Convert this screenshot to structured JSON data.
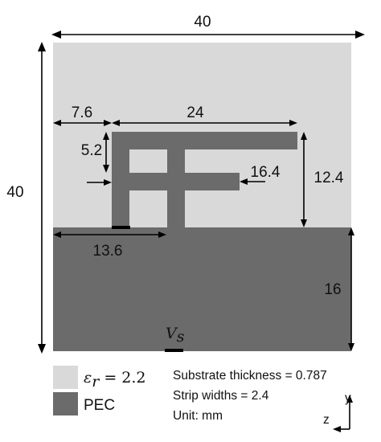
{
  "diagram": {
    "colors": {
      "substrate": "#d9d9d9",
      "pec": "#6b6b6b",
      "feed": "#000000",
      "dimension_line": "#000000"
    },
    "dimensions": {
      "width_top": "40",
      "height_left": "40",
      "offset_left": "7.6",
      "top_strip_length": "24",
      "gap_height": "5.2",
      "mid_strip": "16.4",
      "patch_height": "12.4",
      "ground_offset": "13.6",
      "ground_height": "16"
    },
    "source_label": {
      "symbol": "V",
      "subscript": "s"
    },
    "legend": {
      "substrate_label": "ε",
      "substrate_sub": "r",
      "substrate_value": " = 2.2",
      "pec_label": "PEC"
    },
    "notes": {
      "line1": "Substrate thickness = 0.787",
      "line2": "Strip widths = 2.4",
      "line3": "Unit: mm"
    },
    "axes": {
      "y": "y",
      "z": "z"
    }
  }
}
